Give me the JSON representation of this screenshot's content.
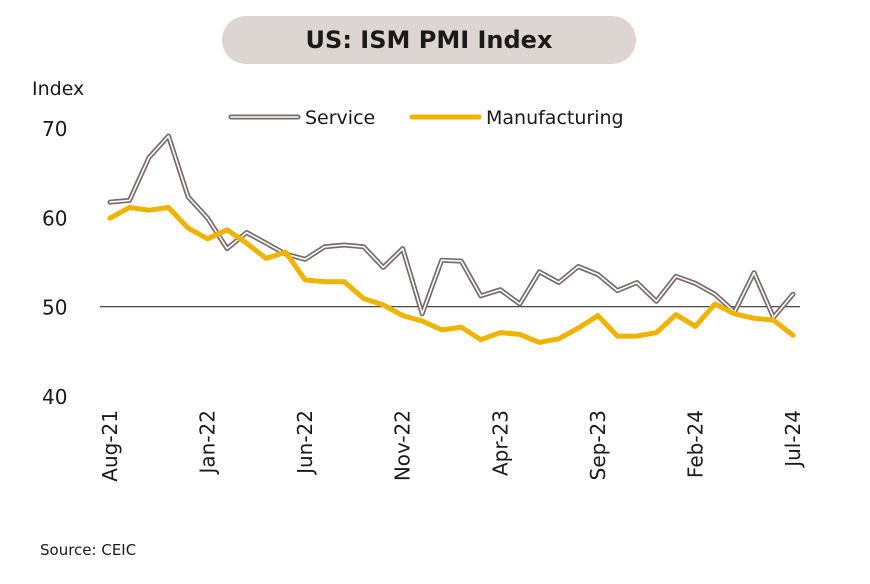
{
  "chart_data": {
    "type": "line",
    "title": "US: ISM PMI Index",
    "ylabel": "Index",
    "xlabel": "",
    "source": "Source: CEIC",
    "ylim": [
      40,
      72
    ],
    "yticks": [
      40,
      50,
      60,
      70
    ],
    "reference_line": 50,
    "x_tick_labels": [
      "Aug-21",
      "Jan-22",
      "Jun-22",
      "Nov-22",
      "Apr-23",
      "Sep-23",
      "Feb-24",
      "Jul-24"
    ],
    "x": [
      "Aug-21",
      "Sep-21",
      "Oct-21",
      "Nov-21",
      "Dec-21",
      "Jan-22",
      "Feb-22",
      "Mar-22",
      "Apr-22",
      "May-22",
      "Jun-22",
      "Jul-22",
      "Aug-22",
      "Sep-22",
      "Oct-22",
      "Nov-22",
      "Dec-22",
      "Jan-23",
      "Feb-23",
      "Mar-23",
      "Apr-23",
      "May-23",
      "Jun-23",
      "Jul-23",
      "Aug-23",
      "Sep-23",
      "Oct-23",
      "Nov-23",
      "Dec-23",
      "Jan-24",
      "Feb-24",
      "Mar-24",
      "Apr-24",
      "May-24",
      "Jun-24",
      "Jul-24"
    ],
    "legend_placement": "top-center",
    "series": [
      {
        "name": "Service",
        "color": "#7a6b6b",
        "style": "double-line",
        "values": [
          61.7,
          61.9,
          66.7,
          69.1,
          62.3,
          59.9,
          56.5,
          58.3,
          57.1,
          55.9,
          55.3,
          56.7,
          56.9,
          56.7,
          54.4,
          56.5,
          49.2,
          55.2,
          55.1,
          51.2,
          51.9,
          50.3,
          53.9,
          52.7,
          54.5,
          53.6,
          51.8,
          52.7,
          50.6,
          53.4,
          52.6,
          51.4,
          49.4,
          53.8,
          48.8,
          51.4
        ]
      },
      {
        "name": "Manufacturing",
        "color": "#f0b300",
        "style": "thick",
        "values": [
          59.9,
          61.1,
          60.8,
          61.1,
          58.8,
          57.6,
          58.6,
          57.1,
          55.4,
          56.1,
          53.0,
          52.8,
          52.8,
          50.9,
          50.2,
          49.0,
          48.4,
          47.4,
          47.7,
          46.3,
          47.1,
          46.9,
          46.0,
          46.4,
          47.6,
          49.0,
          46.7,
          46.7,
          47.1,
          49.1,
          47.8,
          50.3,
          49.2,
          48.7,
          48.5,
          46.8
        ]
      }
    ]
  }
}
